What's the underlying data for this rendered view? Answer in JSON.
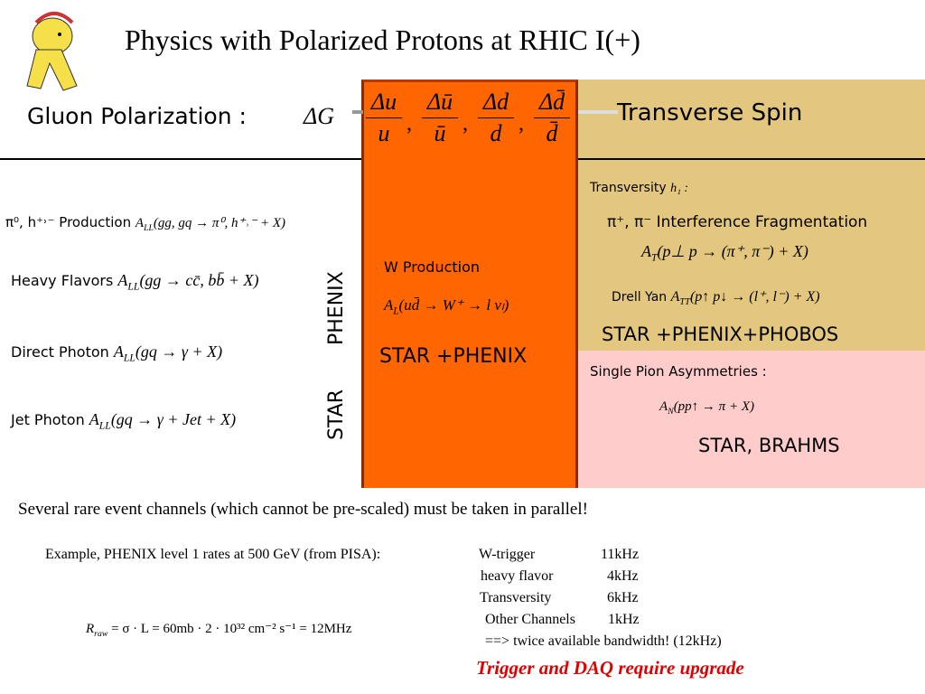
{
  "header": {
    "title": "Physics with Polarized Protons at RHIC  I(+)",
    "gluon_label": "Gluon Polarization :",
    "gluon_symbol": "ΔG",
    "fractions": [
      {
        "num": "Δu",
        "den": "u"
      },
      {
        "num": "Δū",
        "den": "ū"
      },
      {
        "num": "Δd",
        "den": "d"
      },
      {
        "num": "Δd̄",
        "den": "d̄"
      }
    ],
    "separator": ",",
    "transverse": "Transverse Spin"
  },
  "left": {
    "items": [
      {
        "label": "π⁰, h⁺˒⁻ Production",
        "asym": "A",
        "sub": "LL",
        "expr": "(gg, gq → π⁰, h⁺˒⁻ + X)"
      },
      {
        "label": "Heavy Flavors",
        "asym": "A",
        "sub": "LL",
        "expr": "(gg → cc̄, bb̄ + X)"
      },
      {
        "label": "Direct Photon",
        "asym": "A",
        "sub": "LL",
        "expr": "(gq → γ + X)"
      },
      {
        "label": "Jet Photon",
        "asym": "A",
        "sub": "LL",
        "expr": "(gq → γ + Jet + X)"
      }
    ],
    "phenix": "PHENIX",
    "star": "STAR"
  },
  "middle": {
    "label": "W Production",
    "asym": "A",
    "sub": "L",
    "expr": "(ud̄ → W⁺ → l νₗ)",
    "experiments": "STAR +PHENIX"
  },
  "right": {
    "transversity": "Transversity",
    "h1": "h₁ :",
    "interference": "π⁺, π⁻ Interference Fragmentation",
    "at": {
      "asym": "A",
      "sub": "T",
      "expr": "(p⊥ p → (π⁺, π⁻) + X)"
    },
    "drell_yan": "Drell Yan",
    "att": {
      "asym": "A",
      "sub": "TT",
      "expr": "(p↑ p↓ → (l⁺, l⁻) + X)"
    },
    "experiments_top": "STAR +PHENIX+PHOBOS",
    "single_pion": "Single Pion Asymmetries :",
    "an": {
      "asym": "A",
      "sub": "N",
      "expr": "(pp↑ → π + X)"
    },
    "experiments_bottom": "STAR, BRAHMS"
  },
  "footer": {
    "note": "Several rare event channels (which cannot be pre-scaled) must be taken in parallel!",
    "example": "Example, PHENIX level 1 rates at 500 GeV (from PISA):",
    "rates": [
      [
        "W-trigger",
        "11kHz"
      ],
      [
        "heavy flavor",
        "4kHz"
      ],
      [
        "Transversity",
        "6kHz"
      ],
      [
        "Other Channels",
        "1kHz"
      ]
    ],
    "summary": "==> twice available  bandwidth!  (12kHz)",
    "formula": {
      "symbol": "R",
      "sub": "raw",
      "expr": "= σ · L = 60mb · 2 · 10³² cm⁻² s⁻¹ = 12MHz"
    },
    "conclusion": "Trigger and DAQ require upgrade"
  }
}
